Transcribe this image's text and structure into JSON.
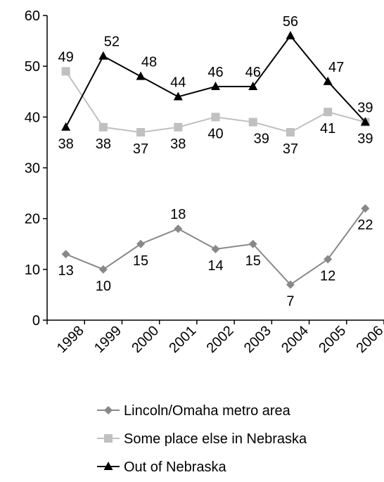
{
  "chart_data": {
    "type": "line",
    "title": "",
    "xlabel": "",
    "ylabel": "",
    "ylim": [
      0,
      60
    ],
    "y_ticks": [
      "0",
      "10",
      "20",
      "30",
      "40",
      "50",
      "60"
    ],
    "categories": [
      "1998",
      "1999",
      "2000",
      "2001",
      "2002",
      "2003",
      "2004",
      "2005",
      "2006"
    ],
    "grid": false,
    "legend_position": "bottom",
    "series": [
      {
        "name": "Lincoln/Omaha metro area",
        "marker": "diamond",
        "color": "#888888",
        "values": [
          13,
          10,
          15,
          18,
          14,
          15,
          7,
          12,
          22
        ],
        "labels": [
          "13",
          "10",
          "15",
          "18",
          "14",
          "15",
          "7",
          "12",
          "22"
        ]
      },
      {
        "name": "Some place else in Nebraska",
        "marker": "square",
        "color": "#c0c0c0",
        "values": [
          49,
          38,
          37,
          38,
          40,
          39,
          37,
          41,
          39
        ],
        "labels": [
          "49",
          "38",
          "37",
          "38",
          "40",
          "39",
          "37",
          "41",
          "39"
        ]
      },
      {
        "name": "Out of Nebraska",
        "marker": "triangle",
        "color": "#000000",
        "values": [
          38,
          52,
          48,
          44,
          46,
          46,
          56,
          47,
          39
        ],
        "labels": [
          "38",
          "52",
          "48",
          "44",
          "46",
          "46",
          "56",
          "47",
          "39"
        ]
      }
    ]
  }
}
